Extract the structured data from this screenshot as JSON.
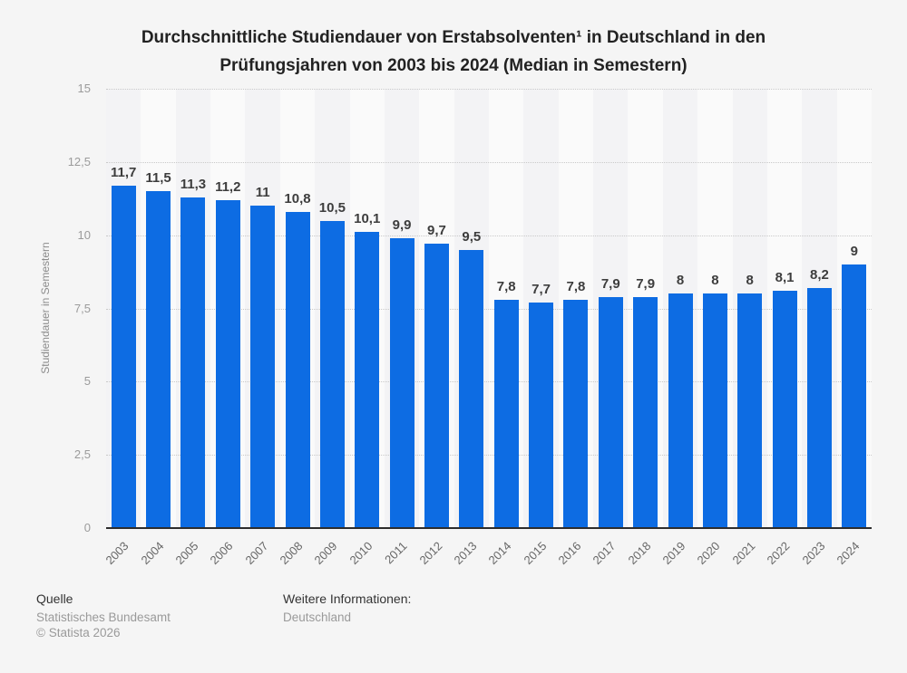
{
  "title": {
    "line1": "Durchschnittliche Studiendauer von Erstabsolventen¹ in Deutschland in den",
    "line2": "Prüfungsjahren von 2003 bis 2024 (Median in Semestern)"
  },
  "chart_data": {
    "type": "bar",
    "title": "Durchschnittliche Studiendauer von Erstabsolventen¹ in Deutschland in den Prüfungsjahren von 2003 bis 2024 (Median in Semestern)",
    "categories": [
      "2003",
      "2004",
      "2005",
      "2006",
      "2007",
      "2008",
      "2009",
      "2010",
      "2011",
      "2012",
      "2013",
      "2014",
      "2015",
      "2016",
      "2017",
      "2018",
      "2019",
      "2020",
      "2021",
      "2022",
      "2023",
      "2024"
    ],
    "values": [
      11.7,
      11.5,
      11.3,
      11.2,
      11,
      10.8,
      10.5,
      10.1,
      9.9,
      9.7,
      9.5,
      7.8,
      7.7,
      7.8,
      7.9,
      7.9,
      8,
      8,
      8,
      8.1,
      8.2,
      9
    ],
    "value_labels": [
      "11,7",
      "11,5",
      "11,3",
      "11,2",
      "11",
      "10,8",
      "10,5",
      "10,1",
      "9,9",
      "9,7",
      "9,5",
      "7,8",
      "7,7",
      "7,8",
      "7,9",
      "7,9",
      "8",
      "8",
      "8",
      "8,1",
      "8,2",
      "9"
    ],
    "xlabel": "",
    "ylabel": "Studiendauer in Semestern",
    "ylim": [
      0,
      15
    ],
    "yticks": [
      0,
      2.5,
      5,
      7.5,
      10,
      12.5,
      15
    ],
    "ytick_labels": [
      "0",
      "2,5",
      "5",
      "7,5",
      "10",
      "12,5",
      "15"
    ],
    "grid": "horizontal-dotted",
    "legend": "none",
    "bar_color": "#0d6ce3",
    "stripe_color_even": "#f3f3f5",
    "stripe_color_odd": "#fafafa"
  },
  "footer": {
    "source_label": "Quelle",
    "source": "Statistisches Bundesamt",
    "copyright": "© Statista 2026",
    "info_label": "Weitere Informationen:",
    "info": "Deutschland"
  }
}
